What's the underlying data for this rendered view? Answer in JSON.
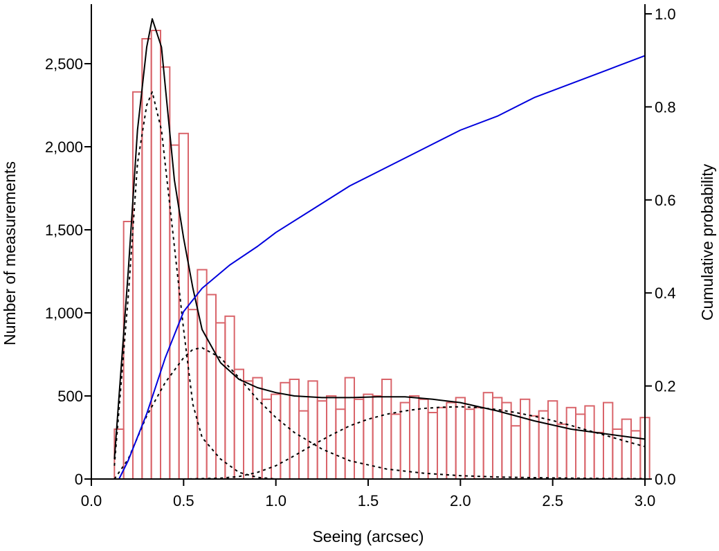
{
  "chart_data": {
    "type": "bar",
    "title": "",
    "xlabel": "Seeing (arcsec)",
    "ylabel": "Number of measurements",
    "y2label": "Cumulative probability",
    "xlim": [
      0.0,
      3.0
    ],
    "ylim": [
      0,
      2800
    ],
    "y2lim": [
      0.0,
      1.0
    ],
    "xticks": [
      "0.0",
      "0.5",
      "1.0",
      "1.5",
      "2.0",
      "2.5",
      "3.0"
    ],
    "yticks": [
      "0",
      "500",
      "1,000",
      "1,500",
      "2,000",
      "2,500"
    ],
    "y2ticks": [
      "0.0",
      "0.2",
      "0.4",
      "0.6",
      "0.8",
      "1.0"
    ],
    "grid": false,
    "colors": {
      "histogram": "#d9646a",
      "cumulative": "#0000dd",
      "fit": "#000000",
      "components": "#000000"
    },
    "histogram": {
      "bin_width": 0.05,
      "bin_starts": [
        0.125,
        0.175,
        0.225,
        0.275,
        0.325,
        0.375,
        0.425,
        0.475,
        0.525,
        0.575,
        0.625,
        0.675,
        0.725,
        0.775,
        0.825,
        0.875,
        0.925,
        0.975,
        1.025,
        1.075,
        1.125,
        1.175,
        1.225,
        1.275,
        1.325,
        1.375,
        1.425,
        1.475,
        1.525,
        1.575,
        1.625,
        1.675,
        1.725,
        1.775,
        1.825,
        1.875,
        1.925,
        1.975,
        2.025,
        2.075,
        2.125,
        2.175,
        2.225,
        2.275,
        2.325,
        2.375,
        2.425,
        2.475,
        2.525,
        2.575,
        2.625,
        2.675,
        2.725,
        2.775,
        2.825,
        2.875,
        2.925,
        2.975
      ],
      "values": [
        300,
        1550,
        2330,
        2650,
        2700,
        2480,
        2010,
        2080,
        1020,
        1260,
        1110,
        940,
        980,
        660,
        590,
        610,
        480,
        510,
        580,
        600,
        410,
        590,
        470,
        500,
        420,
        610,
        480,
        510,
        500,
        600,
        390,
        460,
        500,
        480,
        400,
        430,
        460,
        490,
        420,
        430,
        520,
        490,
        460,
        320,
        480,
        380,
        410,
        470,
        330,
        430,
        390,
        440,
        280,
        460,
        300,
        360,
        290,
        370
      ]
    },
    "series": [
      {
        "name": "",
        "type": "line",
        "style": "solid",
        "color": "#000000",
        "x": [
          0.125,
          0.2,
          0.25,
          0.3,
          0.33,
          0.38,
          0.45,
          0.5,
          0.55,
          0.6,
          0.7,
          0.8,
          0.9,
          1.0,
          1.1,
          1.25,
          1.4,
          1.55,
          1.7,
          1.85,
          2.0,
          2.2,
          2.4,
          2.6,
          2.8,
          3.0
        ],
        "y": [
          120,
          1250,
          2100,
          2600,
          2770,
          2600,
          1800,
          1450,
          1150,
          900,
          700,
          600,
          550,
          520,
          500,
          490,
          490,
          495,
          495,
          480,
          460,
          410,
          350,
          300,
          270,
          240
        ]
      },
      {
        "name": "",
        "type": "line",
        "style": "dashed",
        "color": "#000000",
        "x": [
          0.125,
          0.2,
          0.25,
          0.3,
          0.33,
          0.38,
          0.45,
          0.5,
          0.55,
          0.6,
          0.7,
          0.8,
          0.9,
          1.0,
          1.1,
          1.25,
          1.4,
          1.6,
          1.8,
          2.0,
          2.2,
          2.4,
          2.6,
          2.8,
          3.0
        ],
        "y": [
          80,
          1100,
          1900,
          2250,
          2330,
          2100,
          1400,
          900,
          450,
          250,
          120,
          40,
          10,
          0,
          0,
          0,
          0,
          0,
          0,
          0,
          0,
          0,
          0,
          0,
          0
        ]
      },
      {
        "name": "",
        "type": "line",
        "style": "dashed",
        "color": "#000000",
        "x": [
          0.125,
          0.2,
          0.3,
          0.4,
          0.5,
          0.55,
          0.6,
          0.7,
          0.8,
          0.9,
          1.0,
          1.1,
          1.25,
          1.4,
          1.6,
          1.8,
          2.0,
          2.2,
          2.4,
          2.6,
          2.8,
          3.0
        ],
        "y": [
          0,
          120,
          380,
          580,
          730,
          780,
          790,
          730,
          610,
          480,
          370,
          280,
          180,
          110,
          60,
          35,
          20,
          12,
          8,
          5,
          3,
          2
        ]
      },
      {
        "name": "",
        "type": "line",
        "style": "dashed",
        "color": "#000000",
        "x": [
          0.125,
          0.5,
          0.7,
          0.8,
          0.9,
          1.0,
          1.1,
          1.2,
          1.3,
          1.4,
          1.5,
          1.6,
          1.7,
          1.8,
          1.9,
          2.0,
          2.1,
          2.2,
          2.3,
          2.4,
          2.5,
          2.6,
          2.7,
          2.8,
          2.9,
          3.0
        ],
        "y": [
          0,
          0,
          5,
          15,
          40,
          80,
          140,
          205,
          265,
          320,
          360,
          390,
          410,
          425,
          432,
          435,
          430,
          418,
          400,
          378,
          352,
          322,
          290,
          258,
          226,
          195
        ]
      },
      {
        "name": "",
        "type": "line",
        "style": "solid",
        "color": "#0000dd",
        "axis": "right",
        "x": [
          0.15,
          0.2,
          0.25,
          0.3,
          0.35,
          0.4,
          0.45,
          0.5,
          0.6,
          0.75,
          0.9,
          1.0,
          1.2,
          1.4,
          1.6,
          1.8,
          2.0,
          2.2,
          2.4,
          2.6,
          2.8,
          3.0
        ],
        "y": [
          0.0,
          0.04,
          0.09,
          0.14,
          0.2,
          0.26,
          0.31,
          0.36,
          0.41,
          0.46,
          0.5,
          0.53,
          0.58,
          0.63,
          0.67,
          0.71,
          0.75,
          0.78,
          0.82,
          0.85,
          0.88,
          0.91
        ]
      }
    ]
  }
}
